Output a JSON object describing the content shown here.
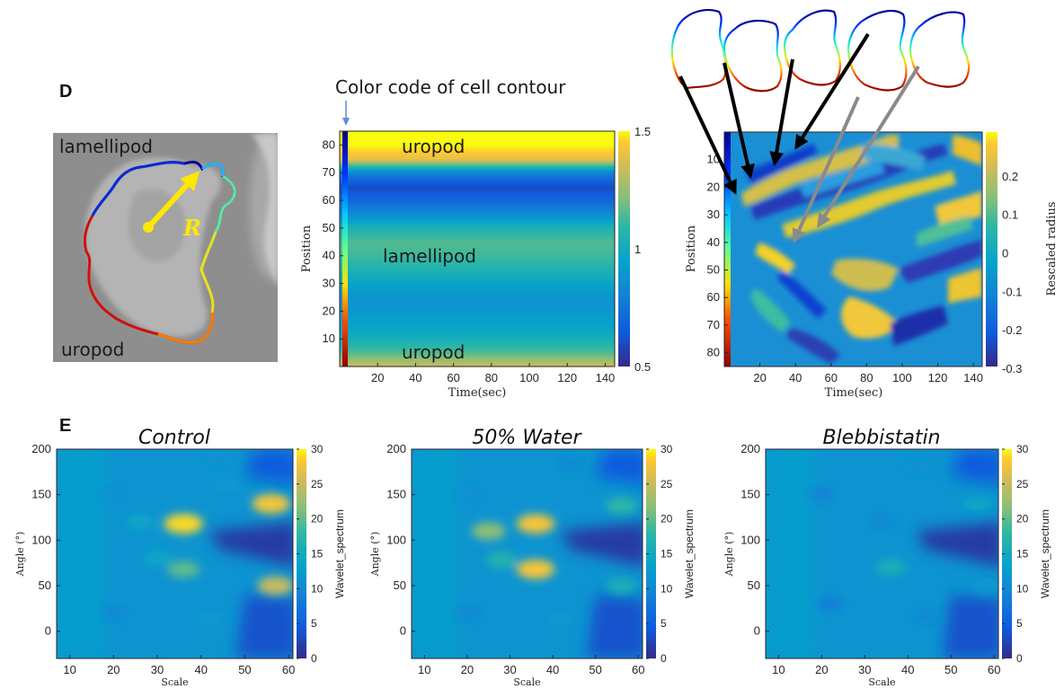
{
  "panel_d": {
    "label": "D",
    "cell_image": {
      "lamellipod_label": "lamellipod",
      "uropod_label": "uropod",
      "radius_label": "R"
    },
    "contour_caption": "Color code of cell contour"
  },
  "panel_e": {
    "label": "E"
  },
  "chart_data": [
    {
      "type": "heatmap",
      "id": "mean-radius-heatmap",
      "xlabel": "Time(sec)",
      "ylabel": "Position",
      "xticks": [
        20,
        40,
        60,
        80,
        100,
        120,
        140
      ],
      "yticks": [
        10,
        20,
        30,
        40,
        50,
        60,
        70,
        80
      ],
      "xlim": [
        0,
        145
      ],
      "ylim": [
        85,
        0
      ],
      "colorbar": {
        "ticks": [
          1.5,
          1,
          0.5
        ],
        "range": [
          0.5,
          1.5
        ],
        "label": ""
      },
      "annotations": [
        "uropod",
        "lamellipod",
        "uropod"
      ],
      "row_profile": {
        "positions": [
          0,
          5,
          10,
          15,
          20,
          25,
          30,
          35,
          40,
          45,
          50,
          55,
          60,
          65,
          70,
          75,
          80,
          85
        ],
        "values": [
          1.35,
          1.15,
          1.02,
          0.95,
          0.9,
          0.88,
          0.95,
          1.05,
          1.12,
          1.15,
          1.05,
          0.85,
          0.7,
          0.6,
          0.8,
          1.4,
          1.5,
          1.5
        ]
      }
    },
    {
      "type": "heatmap",
      "id": "rescaled-radius-heatmap",
      "xlabel": "Time(sec)",
      "ylabel": "Position",
      "xticks": [
        20,
        40,
        60,
        80,
        100,
        120,
        140
      ],
      "yticks": [
        10,
        20,
        30,
        40,
        50,
        60,
        70,
        80
      ],
      "xlim": [
        0,
        145
      ],
      "ylim": [
        85,
        0
      ],
      "colorbar": {
        "ticks": [
          0.2,
          0.1,
          0,
          -0.1,
          -0.2,
          -0.3
        ],
        "range": [
          -0.3,
          0.3
        ],
        "label": "Rescaled radius"
      }
    },
    {
      "type": "heatmap",
      "id": "wavelet-control",
      "title": "Control",
      "xlabel": "Scale",
      "ylabel": "Angle (°)",
      "xticks": [
        10,
        20,
        30,
        40,
        50,
        60
      ],
      "yticks": [
        200,
        150,
        100,
        50,
        0
      ],
      "xlim": [
        7,
        61
      ],
      "ylim": [
        -30,
        200
      ],
      "colorbar": {
        "ticks": [
          30,
          25,
          20,
          15,
          10,
          5,
          0
        ],
        "range": [
          0,
          30
        ],
        "label": "Wavelet_spectrum"
      },
      "blobs": [
        {
          "scale": 36,
          "angle": 118,
          "value": 29
        },
        {
          "scale": 56,
          "angle": 140,
          "value": 28
        },
        {
          "scale": 57,
          "angle": 50,
          "value": 25
        },
        {
          "scale": 36,
          "angle": 68,
          "value": 20
        },
        {
          "scale": 30,
          "angle": 80,
          "value": 14
        },
        {
          "scale": 26,
          "angle": 120,
          "value": 14
        },
        {
          "scale": 20,
          "angle": 150,
          "value": 11
        },
        {
          "scale": 44,
          "angle": 190,
          "value": 11
        },
        {
          "scale": 46,
          "angle": 160,
          "value": 12
        },
        {
          "scale": 20,
          "angle": 20,
          "value": 10
        },
        {
          "scale": 42,
          "angle": 15,
          "value": 12
        }
      ]
    },
    {
      "type": "heatmap",
      "id": "wavelet-water",
      "title": "50% Water",
      "xlabel": "Scale",
      "ylabel": "Angle (°)",
      "xticks": [
        10,
        20,
        30,
        40,
        50,
        60
      ],
      "yticks": [
        200,
        150,
        100,
        50,
        0
      ],
      "xlim": [
        7,
        61
      ],
      "ylim": [
        -30,
        200
      ],
      "colorbar": {
        "ticks": [
          30,
          25,
          20,
          15,
          10,
          5,
          0
        ],
        "range": [
          0,
          30
        ],
        "label": "Wavelet_spectrum"
      },
      "blobs": [
        {
          "scale": 36,
          "angle": 118,
          "value": 28
        },
        {
          "scale": 36,
          "angle": 68,
          "value": 28
        },
        {
          "scale": 25,
          "angle": 110,
          "value": 22
        },
        {
          "scale": 28,
          "angle": 78,
          "value": 17
        },
        {
          "scale": 56,
          "angle": 138,
          "value": 18
        },
        {
          "scale": 56,
          "angle": 50,
          "value": 16
        },
        {
          "scale": 20,
          "angle": 150,
          "value": 11
        },
        {
          "scale": 44,
          "angle": 185,
          "value": 10
        },
        {
          "scale": 20,
          "angle": 20,
          "value": 10
        },
        {
          "scale": 42,
          "angle": 15,
          "value": 12
        }
      ]
    },
    {
      "type": "heatmap",
      "id": "wavelet-blebbistatin",
      "title": "Blebbistatin",
      "xlabel": "Scale",
      "ylabel": "Angle (°)",
      "xticks": [
        10,
        20,
        30,
        40,
        50,
        60
      ],
      "yticks": [
        200,
        150,
        100,
        50,
        0
      ],
      "xlim": [
        7,
        61
      ],
      "ylim": [
        -30,
        200
      ],
      "colorbar": {
        "ticks": [
          30,
          25,
          20,
          15,
          10,
          5,
          0
        ],
        "range": [
          0,
          30
        ],
        "label": "Wavelet_spectrum"
      },
      "blobs": [
        {
          "scale": 36,
          "angle": 70,
          "value": 16
        },
        {
          "scale": 56,
          "angle": 140,
          "value": 14
        },
        {
          "scale": 58,
          "angle": 50,
          "value": 12
        },
        {
          "scale": 42,
          "angle": 180,
          "value": 11
        },
        {
          "scale": 34,
          "angle": 120,
          "value": 10
        },
        {
          "scale": 20,
          "angle": 150,
          "value": 9
        },
        {
          "scale": 44,
          "angle": 15,
          "value": 10
        },
        {
          "scale": 22,
          "angle": 30,
          "value": 8
        }
      ]
    }
  ]
}
